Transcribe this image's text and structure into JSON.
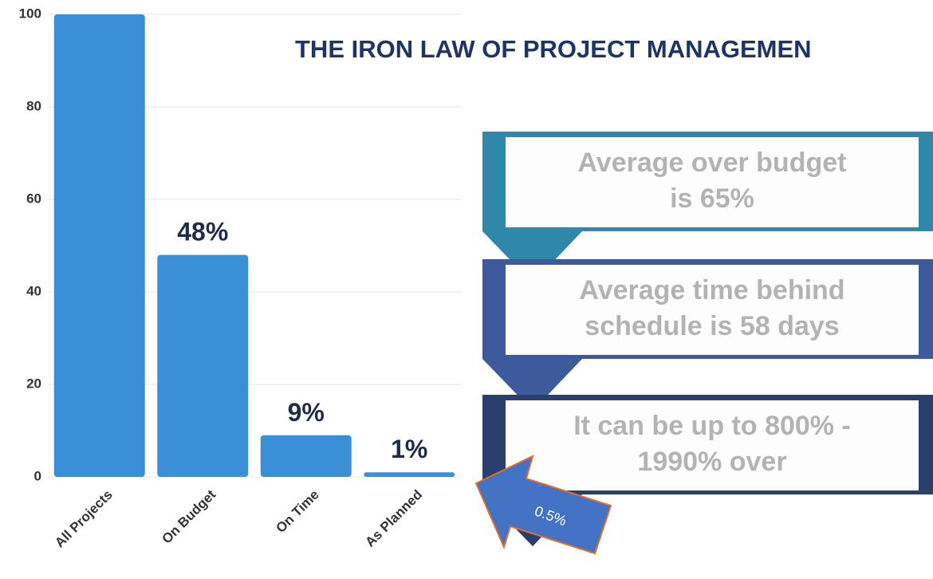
{
  "chart_data": {
    "type": "bar",
    "title": "THE IRON LAW OF PROJECT MANAGEMEN",
    "categories": [
      "All Projects",
      "On Budget",
      "On Time",
      "As Planned"
    ],
    "values": [
      100,
      48,
      9,
      1
    ],
    "value_labels": [
      null,
      "48%",
      "9%",
      "1%"
    ],
    "color": "#3b8fd7",
    "ylim": [
      0,
      100
    ],
    "yticks": [
      0,
      20,
      40,
      60,
      80,
      100
    ],
    "grid": true,
    "annotation": "0.5%"
  },
  "callouts": [
    {
      "lines": [
        "Average over budget",
        "is 65%"
      ],
      "color": "#2f87a9"
    },
    {
      "lines": [
        "Average time behind",
        "schedule is 58 days"
      ],
      "color": "#3d5a9c"
    },
    {
      "lines": [
        "It can be up to 800% -",
        "1990% over"
      ],
      "color": "#2b3f6f"
    }
  ]
}
